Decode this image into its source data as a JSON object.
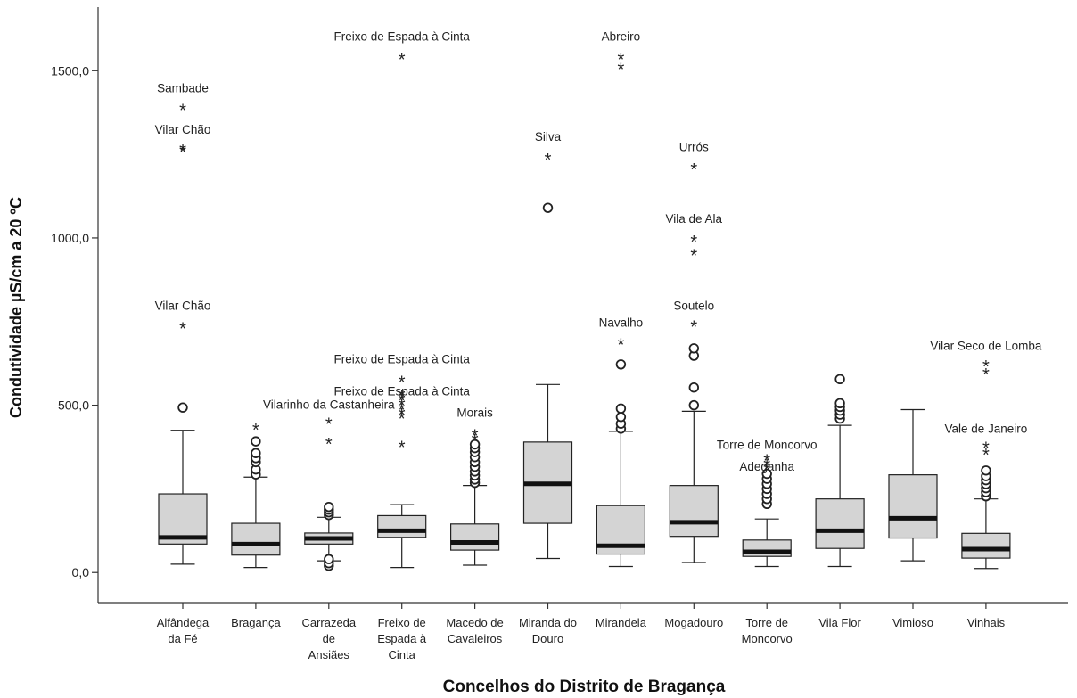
{
  "chart_data": {
    "type": "box",
    "xlabel": "Concelhos do Distrito de Bragança",
    "ylabel": "Condutividade µS/cm a 20 ºC",
    "ylim": [
      -90,
      1690
    ],
    "yticks": [
      0,
      500,
      1000,
      1500
    ],
    "ytick_labels": [
      "0,0",
      "500,0",
      "1000,0",
      "1500,0"
    ],
    "grid": false,
    "colors": {
      "box_fill": "#d4d4d4",
      "median": "#111111",
      "stroke": "#222222"
    },
    "categories": [
      {
        "lines": [
          "Alfândega",
          "da Fé"
        ]
      },
      {
        "lines": [
          "Bragança"
        ]
      },
      {
        "lines": [
          "Carrazeda",
          "de",
          "Ansiães"
        ]
      },
      {
        "lines": [
          "Freixo de",
          "Espada à",
          "Cinta"
        ]
      },
      {
        "lines": [
          "Macedo de",
          "Cavaleiros"
        ]
      },
      {
        "lines": [
          "Miranda do",
          "Douro"
        ]
      },
      {
        "lines": [
          "Mirandela"
        ]
      },
      {
        "lines": [
          "Mogadouro"
        ]
      },
      {
        "lines": [
          "Torre de",
          "Moncorvo"
        ]
      },
      {
        "lines": [
          "Vila Flor"
        ]
      },
      {
        "lines": [
          "Vimioso"
        ]
      },
      {
        "lines": [
          "Vinhais"
        ]
      }
    ],
    "boxes": [
      {
        "whisker_low": 25,
        "q1": 85,
        "median": 105,
        "q3": 235,
        "whisker_high": 425
      },
      {
        "whisker_low": 15,
        "q1": 52,
        "median": 85,
        "q3": 147,
        "whisker_high": 285
      },
      {
        "whisker_low": 35,
        "q1": 85,
        "median": 102,
        "q3": 118,
        "whisker_high": 165
      },
      {
        "whisker_low": 15,
        "q1": 105,
        "median": 125,
        "q3": 170,
        "whisker_high": 203
      },
      {
        "whisker_low": 22,
        "q1": 67,
        "median": 90,
        "q3": 145,
        "whisker_high": 260
      },
      {
        "whisker_low": 42,
        "q1": 147,
        "median": 265,
        "q3": 390,
        "whisker_high": 562
      },
      {
        "whisker_low": 18,
        "q1": 55,
        "median": 80,
        "q3": 200,
        "whisker_high": 422
      },
      {
        "whisker_low": 30,
        "q1": 108,
        "median": 150,
        "q3": 260,
        "whisker_high": 482
      },
      {
        "whisker_low": 18,
        "q1": 48,
        "median": 62,
        "q3": 97,
        "whisker_high": 160
      },
      {
        "whisker_low": 18,
        "q1": 72,
        "median": 125,
        "q3": 220,
        "whisker_high": 440
      },
      {
        "whisker_low": 35,
        "q1": 103,
        "median": 162,
        "q3": 292,
        "whisker_high": 487
      },
      {
        "whisker_low": 12,
        "q1": 43,
        "median": 70,
        "q3": 117,
        "whisker_high": 220
      }
    ],
    "outliers": [
      {
        "cat": 0,
        "kind": "circle",
        "y": 493
      },
      {
        "cat": 0,
        "kind": "star",
        "y": 735
      },
      {
        "cat": 0,
        "kind": "star",
        "y": 1262
      },
      {
        "cat": 0,
        "kind": "star",
        "y": 1268
      },
      {
        "cat": 0,
        "kind": "star",
        "y": 1388
      },
      {
        "cat": 1,
        "kind": "circle",
        "y": 293
      },
      {
        "cat": 1,
        "kind": "circle",
        "y": 308
      },
      {
        "cat": 1,
        "kind": "circle",
        "y": 330
      },
      {
        "cat": 1,
        "kind": "circle",
        "y": 342
      },
      {
        "cat": 1,
        "kind": "circle",
        "y": 357
      },
      {
        "cat": 1,
        "kind": "circle",
        "y": 392
      },
      {
        "cat": 1,
        "kind": "star",
        "y": 432
      },
      {
        "cat": 2,
        "kind": "circle",
        "y": 20
      },
      {
        "cat": 2,
        "kind": "circle",
        "y": 28
      },
      {
        "cat": 2,
        "kind": "circle",
        "y": 40
      },
      {
        "cat": 2,
        "kind": "circle",
        "y": 172
      },
      {
        "cat": 2,
        "kind": "circle",
        "y": 180
      },
      {
        "cat": 2,
        "kind": "circle",
        "y": 188
      },
      {
        "cat": 2,
        "kind": "circle",
        "y": 196
      },
      {
        "cat": 2,
        "kind": "star",
        "y": 390
      },
      {
        "cat": 2,
        "kind": "star",
        "y": 450
      },
      {
        "cat": 3,
        "kind": "star",
        "y": 380
      },
      {
        "cat": 3,
        "kind": "star",
        "y": 465
      },
      {
        "cat": 3,
        "kind": "star",
        "y": 478
      },
      {
        "cat": 3,
        "kind": "star",
        "y": 492
      },
      {
        "cat": 3,
        "kind": "star",
        "y": 506
      },
      {
        "cat": 3,
        "kind": "star",
        "y": 520
      },
      {
        "cat": 3,
        "kind": "star",
        "y": 534
      },
      {
        "cat": 3,
        "kind": "star",
        "y": 575
      },
      {
        "cat": 3,
        "kind": "star",
        "y": 1540
      },
      {
        "cat": 4,
        "kind": "circle",
        "y": 268
      },
      {
        "cat": 4,
        "kind": "circle",
        "y": 278
      },
      {
        "cat": 4,
        "kind": "circle",
        "y": 290
      },
      {
        "cat": 4,
        "kind": "circle",
        "y": 302
      },
      {
        "cat": 4,
        "kind": "circle",
        "y": 316
      },
      {
        "cat": 4,
        "kind": "circle",
        "y": 330
      },
      {
        "cat": 4,
        "kind": "circle",
        "y": 345
      },
      {
        "cat": 4,
        "kind": "circle",
        "y": 360
      },
      {
        "cat": 4,
        "kind": "circle",
        "y": 372
      },
      {
        "cat": 4,
        "kind": "circle",
        "y": 383
      },
      {
        "cat": 4,
        "kind": "star",
        "y": 400
      },
      {
        "cat": 4,
        "kind": "star",
        "y": 415
      },
      {
        "cat": 5,
        "kind": "circle",
        "y": 1090
      },
      {
        "cat": 5,
        "kind": "star",
        "y": 1240
      },
      {
        "cat": 6,
        "kind": "circle",
        "y": 430
      },
      {
        "cat": 6,
        "kind": "circle",
        "y": 445
      },
      {
        "cat": 6,
        "kind": "circle",
        "y": 465
      },
      {
        "cat": 6,
        "kind": "circle",
        "y": 490
      },
      {
        "cat": 6,
        "kind": "circle",
        "y": 622
      },
      {
        "cat": 6,
        "kind": "star",
        "y": 687
      },
      {
        "cat": 6,
        "kind": "star",
        "y": 1510
      },
      {
        "cat": 6,
        "kind": "star",
        "y": 1540
      },
      {
        "cat": 7,
        "kind": "circle",
        "y": 500
      },
      {
        "cat": 7,
        "kind": "circle",
        "y": 553
      },
      {
        "cat": 7,
        "kind": "circle",
        "y": 648
      },
      {
        "cat": 7,
        "kind": "circle",
        "y": 670
      },
      {
        "cat": 7,
        "kind": "star",
        "y": 740
      },
      {
        "cat": 7,
        "kind": "star",
        "y": 953
      },
      {
        "cat": 7,
        "kind": "star",
        "y": 995
      },
      {
        "cat": 7,
        "kind": "star",
        "y": 1210
      },
      {
        "cat": 8,
        "kind": "circle",
        "y": 205
      },
      {
        "cat": 8,
        "kind": "circle",
        "y": 220
      },
      {
        "cat": 8,
        "kind": "circle",
        "y": 235
      },
      {
        "cat": 8,
        "kind": "circle",
        "y": 250
      },
      {
        "cat": 8,
        "kind": "circle",
        "y": 265
      },
      {
        "cat": 8,
        "kind": "circle",
        "y": 280
      },
      {
        "cat": 8,
        "kind": "circle",
        "y": 295
      },
      {
        "cat": 8,
        "kind": "star",
        "y": 312
      },
      {
        "cat": 8,
        "kind": "star",
        "y": 326
      },
      {
        "cat": 8,
        "kind": "star",
        "y": 340
      },
      {
        "cat": 9,
        "kind": "circle",
        "y": 460
      },
      {
        "cat": 9,
        "kind": "circle",
        "y": 472
      },
      {
        "cat": 9,
        "kind": "circle",
        "y": 484
      },
      {
        "cat": 9,
        "kind": "circle",
        "y": 495
      },
      {
        "cat": 9,
        "kind": "circle",
        "y": 506
      },
      {
        "cat": 9,
        "kind": "circle",
        "y": 578
      },
      {
        "cat": 11,
        "kind": "circle",
        "y": 228
      },
      {
        "cat": 11,
        "kind": "circle",
        "y": 240
      },
      {
        "cat": 11,
        "kind": "circle",
        "y": 252
      },
      {
        "cat": 11,
        "kind": "circle",
        "y": 264
      },
      {
        "cat": 11,
        "kind": "circle",
        "y": 276
      },
      {
        "cat": 11,
        "kind": "circle",
        "y": 288
      },
      {
        "cat": 11,
        "kind": "circle",
        "y": 305
      },
      {
        "cat": 11,
        "kind": "star",
        "y": 358
      },
      {
        "cat": 11,
        "kind": "star",
        "y": 378
      },
      {
        "cat": 11,
        "kind": "star",
        "y": 598
      },
      {
        "cat": 11,
        "kind": "star",
        "y": 622
      }
    ],
    "annotations": [
      {
        "cat": 0,
        "y": 1435,
        "text": "Sambade"
      },
      {
        "cat": 0,
        "y": 1312,
        "text": "Vilar Chão"
      },
      {
        "cat": 0,
        "y": 785,
        "text": "Vilar Chão"
      },
      {
        "cat": 2,
        "y": 490,
        "text": "Vilarinho da Castanheira"
      },
      {
        "cat": 3,
        "y": 1590,
        "text": "Freixo de Espada à Cinta"
      },
      {
        "cat": 3,
        "y": 625,
        "text": "Freixo de Espada à Cinta"
      },
      {
        "cat": 3,
        "y": 530,
        "text": "Freixo de Espada à Cinta"
      },
      {
        "cat": 4,
        "y": 465,
        "text": "Morais"
      },
      {
        "cat": 5,
        "y": 1290,
        "text": "Silva"
      },
      {
        "cat": 6,
        "y": 1590,
        "text": "Abreiro"
      },
      {
        "cat": 6,
        "y": 735,
        "text": "Navalho"
      },
      {
        "cat": 7,
        "y": 1260,
        "text": "Urrós"
      },
      {
        "cat": 7,
        "y": 1045,
        "text": "Vila de Ala"
      },
      {
        "cat": 7,
        "y": 785,
        "text": "Soutelo"
      },
      {
        "cat": 8,
        "y": 370,
        "text": "Torre de Moncorvo"
      },
      {
        "cat": 8,
        "y": 305,
        "text": "Adeganha"
      },
      {
        "cat": 11,
        "y": 665,
        "text": "Vilar Seco de Lomba"
      },
      {
        "cat": 11,
        "y": 418,
        "text": "Vale de Janeiro"
      }
    ]
  }
}
